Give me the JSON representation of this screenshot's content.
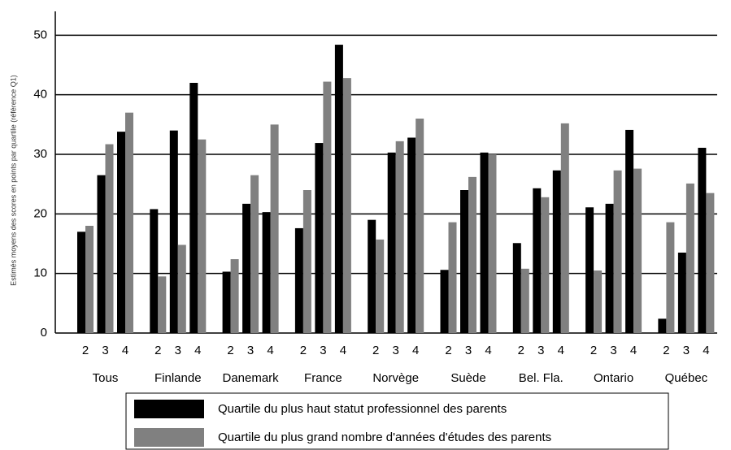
{
  "chart_data": {
    "type": "grouped_bar",
    "y_label": "Estimés moyens des scores en points par quartile (référence Q1)",
    "groups": [
      "Tous",
      "Finlande",
      "Danemark",
      "France",
      "Norvège",
      "Suède",
      "Bel. Fla.",
      "Ontario",
      "Québec"
    ],
    "categories": [
      "2",
      "3",
      "4",
      "2",
      "3",
      "4",
      "2",
      "3",
      "4",
      "2",
      "3",
      "4",
      "2",
      "3",
      "4",
      "2",
      "3",
      "4",
      "2",
      "3",
      "4",
      "2",
      "3",
      "4",
      "2",
      "3",
      "4"
    ],
    "series": [
      {
        "name": "Quartile du plus haut statut professionnel des parents",
        "color": "#000000",
        "values": [
          17,
          26.5,
          33.8,
          20.8,
          34,
          42,
          10.3,
          21.7,
          20.3,
          17.6,
          31.9,
          48.4,
          19,
          30.3,
          32.8,
          10.6,
          24,
          30.3,
          15.1,
          24.3,
          27.3,
          21.1,
          21.7,
          34.1,
          2.4,
          13.5,
          31.1
        ]
      },
      {
        "name": "Quartile du plus grand nombre d'années d'études des parents",
        "color": "#808080",
        "values": [
          18,
          31.7,
          37,
          9.5,
          14.8,
          32.5,
          12.4,
          26.5,
          35,
          24,
          42.2,
          42.8,
          15.7,
          32.2,
          36,
          18.6,
          26.2,
          30,
          10.8,
          22.8,
          35.2,
          10.5,
          27.3,
          27.6,
          18.6,
          25.1,
          23.5
        ]
      }
    ],
    "ylim": [
      0,
      54
    ],
    "yticks": [
      0,
      10,
      20,
      30,
      40,
      50
    ],
    "grid": true
  }
}
